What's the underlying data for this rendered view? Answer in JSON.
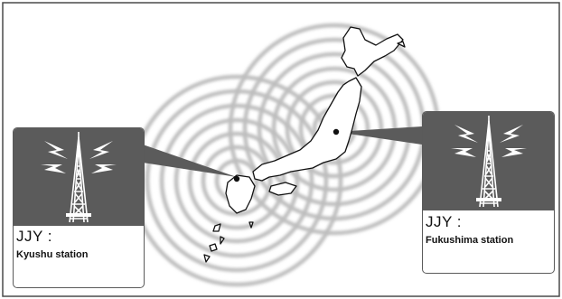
{
  "stations": [
    {
      "id": "kyushu",
      "title": "JJY :",
      "name": "Kyushu station"
    },
    {
      "id": "fukushima",
      "title": "JJY :",
      "name": "Fukushima station"
    }
  ],
  "colors": {
    "panel": "#5b5b5b",
    "waves": "#bdbdbd",
    "outline": "#111111",
    "frame": "#4a4a4a"
  },
  "icons": [
    "radio-tower-icon",
    "signal-bolt-icon",
    "japan-map"
  ]
}
